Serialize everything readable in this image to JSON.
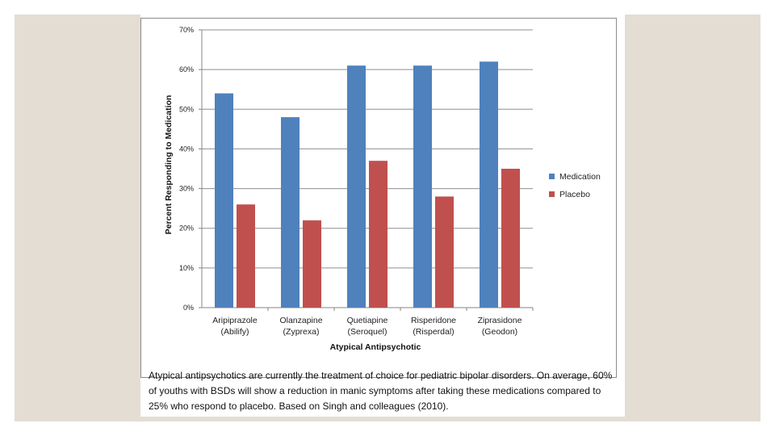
{
  "chart_data": {
    "type": "bar",
    "title": "",
    "xlabel": "Atypical Antipsychotic",
    "ylabel": "Percent Responding to Medication",
    "ylim": [
      0,
      70
    ],
    "yticks": [
      "0%",
      "10%",
      "20%",
      "30%",
      "40%",
      "50%",
      "60%",
      "70%"
    ],
    "categories": [
      [
        "Aripiprazole",
        "(Abilify)"
      ],
      [
        "Olanzapine",
        "(Zyprexa)"
      ],
      [
        "Quetiapine",
        "(Seroquel)"
      ],
      [
        "Risperidone",
        "(Risperdal)"
      ],
      [
        "Ziprasidone",
        "(Geodon)"
      ]
    ],
    "series": [
      {
        "name": "Medication",
        "color": "#4f81bd",
        "values": [
          54,
          48,
          61,
          61,
          62
        ]
      },
      {
        "name": "Placebo",
        "color": "#c0504d",
        "values": [
          26,
          22,
          37,
          28,
          35
        ]
      }
    ],
    "grid": true,
    "legend_position": "right"
  },
  "caption": "Atypical antipsychotics are currently the treatment of choice for pediatric bipolar disorders. On average, 60% of youths with BSDs will show a reduction in manic symptoms after taking these medications compared to 25% who respond to placebo. Based on Singh and colleagues (2010)."
}
